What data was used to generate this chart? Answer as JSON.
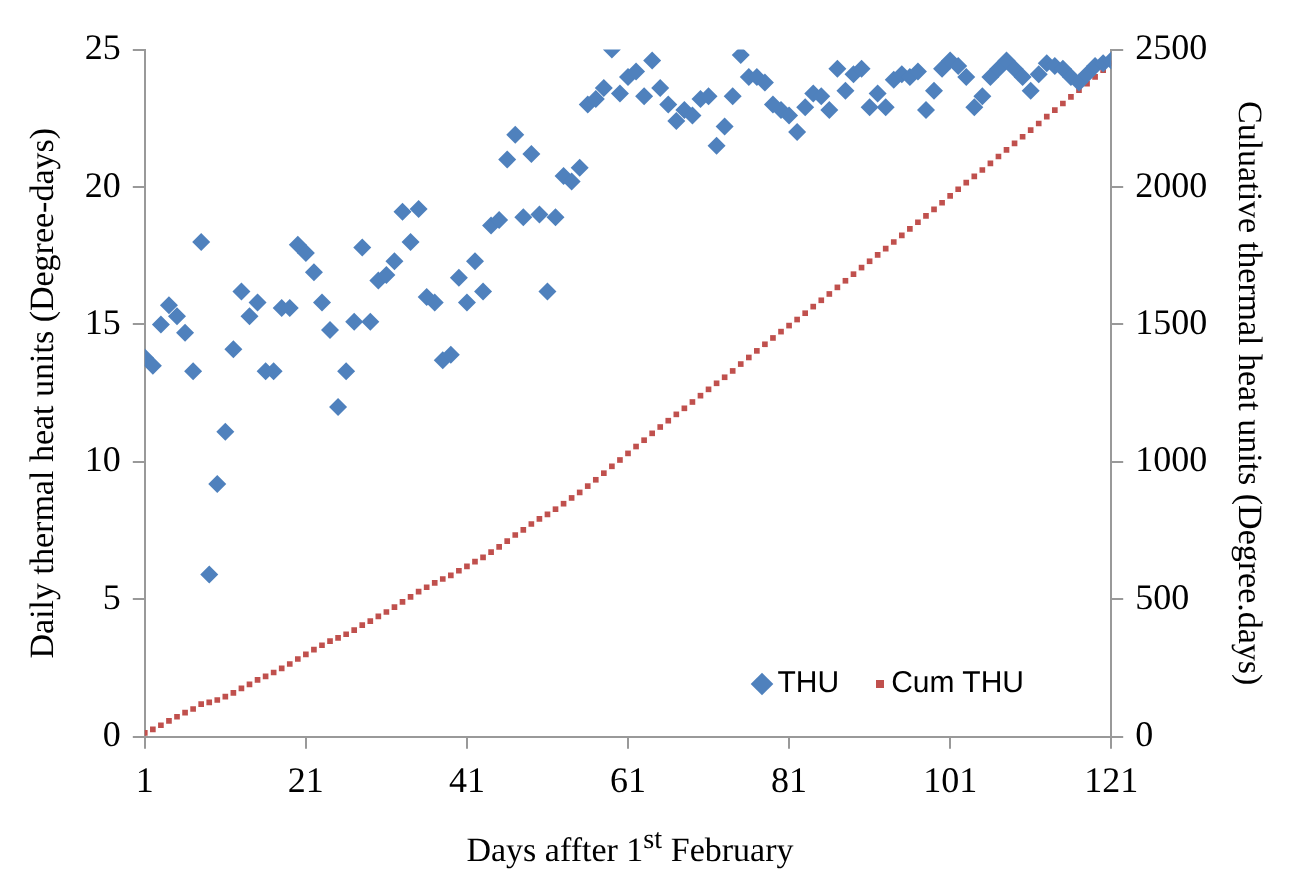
{
  "chart_data": {
    "type": "scatter",
    "xlabel": "Days affter 1$^{st}$ February",
    "ylabel": "Daily thermal heat units (Degree-days)",
    "y2label": "Culuative thermal heat units (Degree.days)",
    "x": [
      1,
      2,
      3,
      4,
      5,
      6,
      7,
      8,
      9,
      10,
      11,
      12,
      13,
      14,
      15,
      16,
      17,
      18,
      19,
      20,
      21,
      22,
      23,
      24,
      25,
      26,
      27,
      28,
      29,
      30,
      31,
      32,
      33,
      34,
      35,
      36,
      37,
      38,
      39,
      40,
      41,
      42,
      43,
      44,
      45,
      46,
      47,
      48,
      49,
      50,
      51,
      52,
      53,
      54,
      55,
      56,
      57,
      58,
      59,
      60,
      61,
      62,
      63,
      64,
      65,
      66,
      67,
      68,
      69,
      70,
      71,
      72,
      73,
      74,
      75,
      76,
      77,
      78,
      79,
      80,
      81,
      82,
      83,
      84,
      85,
      86,
      87,
      88,
      89,
      90,
      91,
      92,
      93,
      94,
      95,
      96,
      97,
      98,
      99,
      100,
      101,
      102,
      103,
      104,
      105,
      106,
      107,
      108,
      109,
      110,
      111,
      112,
      113,
      114,
      115,
      116,
      117,
      118,
      119,
      120,
      121
    ],
    "series": [
      {
        "name": "THU",
        "color": "#4f81bd",
        "marker": "diamond",
        "values": [
          13.8,
          13.5,
          15.0,
          15.7,
          15.3,
          14.7,
          13.3,
          18.0,
          5.9,
          9.2,
          11.1,
          14.1,
          16.2,
          15.3,
          15.8,
          13.3,
          13.3,
          15.6,
          15.6,
          17.9,
          17.6,
          16.9,
          15.8,
          14.8,
          12.0,
          13.3,
          15.1,
          17.8,
          15.1,
          16.6,
          16.8,
          17.3,
          19.1,
          18.0,
          19.2,
          16.0,
          15.8,
          13.7,
          13.9,
          16.7,
          15.8,
          17.3,
          16.2,
          18.6,
          18.8,
          21.0,
          21.9,
          18.9,
          21.2,
          19.0,
          16.2,
          18.9,
          20.4,
          20.2,
          20.7,
          23.0,
          23.2,
          23.6,
          25.0,
          23.4,
          24.0,
          24.2,
          23.3,
          24.6,
          23.6,
          23.0,
          22.4,
          22.8,
          22.6,
          23.2,
          23.3,
          21.5,
          22.2,
          23.3,
          24.8,
          24.0,
          24.0,
          23.8,
          23.0,
          22.8,
          22.6,
          22.0,
          22.9,
          23.4,
          23.3,
          22.8,
          24.3,
          23.5,
          24.1,
          24.3,
          22.9,
          23.4,
          22.9,
          23.9,
          24.1,
          24.0,
          24.2,
          22.8,
          23.5,
          24.3,
          24.6,
          24.4,
          24.0,
          22.9,
          23.3,
          24.0,
          24.3,
          24.6,
          24.3,
          24.0,
          23.5,
          24.1,
          24.5,
          24.4,
          24.3,
          24.0,
          23.8,
          24.1,
          24.4,
          24.5,
          24.6
        ]
      },
      {
        "name": "Cum THU",
        "color": "#c0504d",
        "marker": "square",
        "axis": "y2",
        "values": [
          14,
          27,
          42,
          58,
          73,
          88,
          101,
          119,
          125,
          134,
          146,
          160,
          176,
          191,
          207,
          220,
          234,
          249,
          265,
          283,
          300,
          317,
          333,
          348,
          360,
          373,
          388,
          406,
          421,
          438,
          454,
          472,
          491,
          509,
          528,
          544,
          560,
          574,
          587,
          604,
          620,
          637,
          653,
          672,
          691,
          712,
          734,
          753,
          774,
          793,
          809,
          828,
          848,
          869,
          889,
          912,
          935,
          959,
          984,
          1007,
          1031,
          1056,
          1079,
          1104,
          1127,
          1150,
          1173,
          1195,
          1218,
          1241,
          1264,
          1286,
          1308,
          1331,
          1356,
          1380,
          1404,
          1428,
          1451,
          1474,
          1496,
          1518,
          1541,
          1565,
          1588,
          1611,
          1635,
          1659,
          1683,
          1707,
          1730,
          1753,
          1776,
          1800,
          1824,
          1848,
          1872,
          1895,
          1919,
          1943,
          1968,
          1992,
          2016,
          2039,
          2062,
          2086,
          2111,
          2135,
          2159,
          2183,
          2207,
          2231,
          2256,
          2280,
          2304,
          2328,
          2352,
          2376,
          2401,
          2425,
          2450
        ]
      }
    ],
    "xlim": [
      1,
      121
    ],
    "xticks": [
      1,
      21,
      41,
      61,
      81,
      101,
      121
    ],
    "ylim": [
      0,
      25
    ],
    "yticks": [
      0,
      5,
      10,
      15,
      20,
      25
    ],
    "y2lim": [
      0,
      2500
    ],
    "y2ticks": [
      0,
      500,
      1000,
      1500,
      2000,
      2500
    ],
    "grid": false,
    "legend": "bottom right"
  }
}
